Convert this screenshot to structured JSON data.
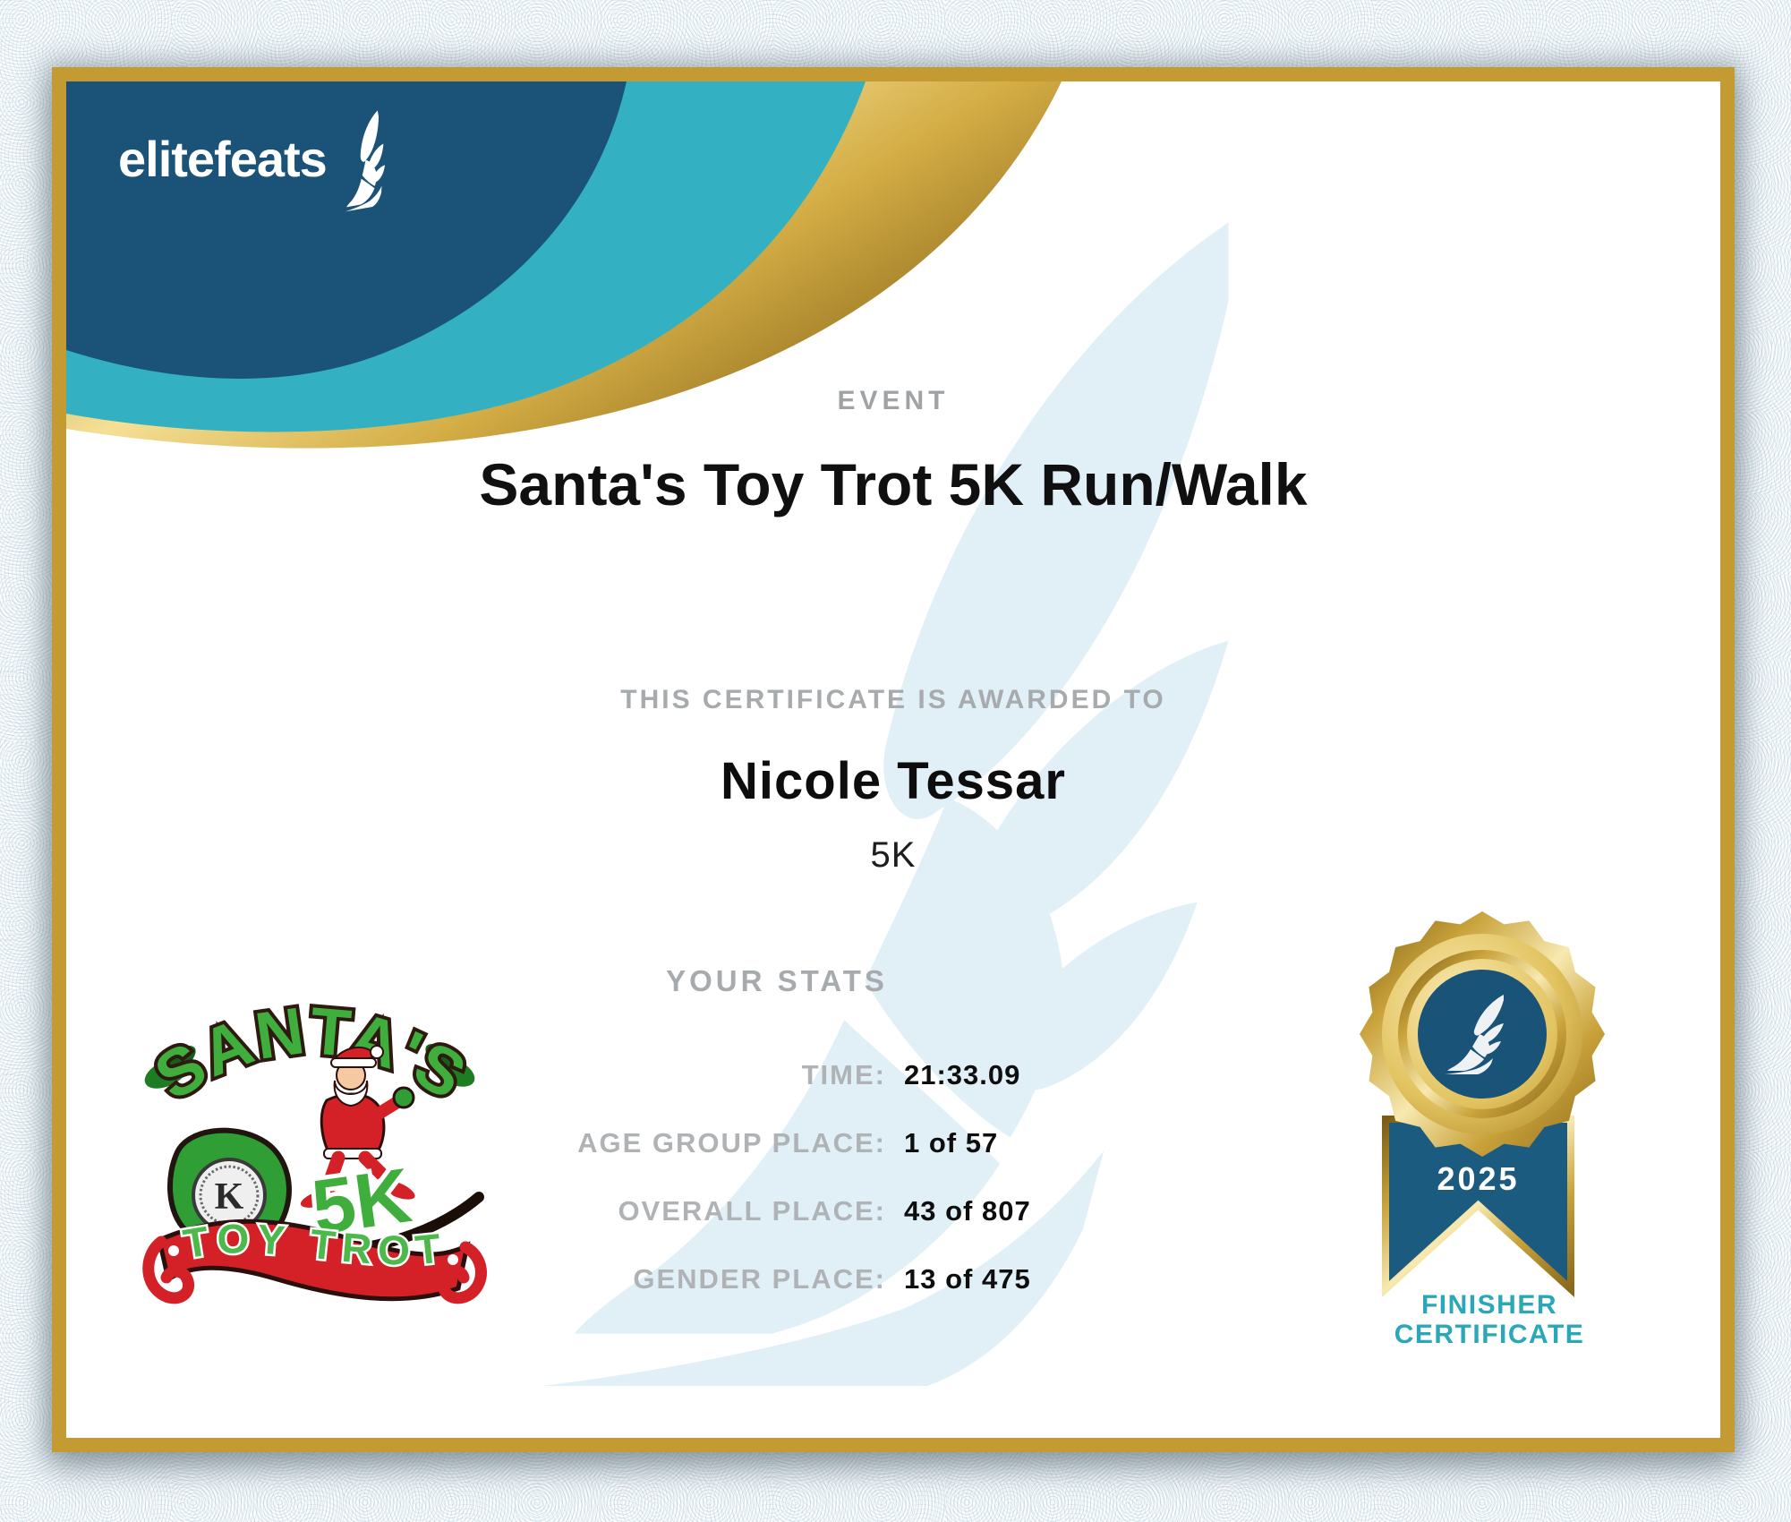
{
  "brand": {
    "name": "elitefeats"
  },
  "header": {
    "event_label": "EVENT",
    "event_name": "Santa's Toy Trot 5K Run/Walk"
  },
  "award": {
    "intro": "THIS CERTIFICATE IS AWARDED TO",
    "recipient": "Nicole Tessar",
    "distance": "5K"
  },
  "stats": {
    "heading": "YOUR STATS",
    "rows": [
      {
        "label": "TIME:",
        "value": "21:33.09"
      },
      {
        "label": "AGE GROUP PLACE:",
        "value": "1 of 57"
      },
      {
        "label": "OVERALL PLACE:",
        "value": "43 of 807"
      },
      {
        "label": "GENDER PLACE:",
        "value": "13 of 475"
      }
    ]
  },
  "badge": {
    "year": "2025",
    "caption_line1": "FINISHER",
    "caption_line2": "CERTIFICATE"
  },
  "event_logo": {
    "arc_text": "SANTA'S",
    "distance_text": "5K",
    "banner_text": "TOY TROT",
    "club_initial": "K"
  },
  "colors": {
    "navy": "#1b5278",
    "teal": "#33b1c2",
    "frame_gold": "#c49a33",
    "medal_gold": "#d9b64a",
    "heading_gray": "#a0a3a5",
    "stat_label_gray": "#b0b3b5",
    "text_black": "#111111",
    "finisher_teal": "#2aa7b8",
    "watermark_blue": "#e1eff7",
    "logo_green": "#3fae3c",
    "logo_red": "#d42127"
  }
}
